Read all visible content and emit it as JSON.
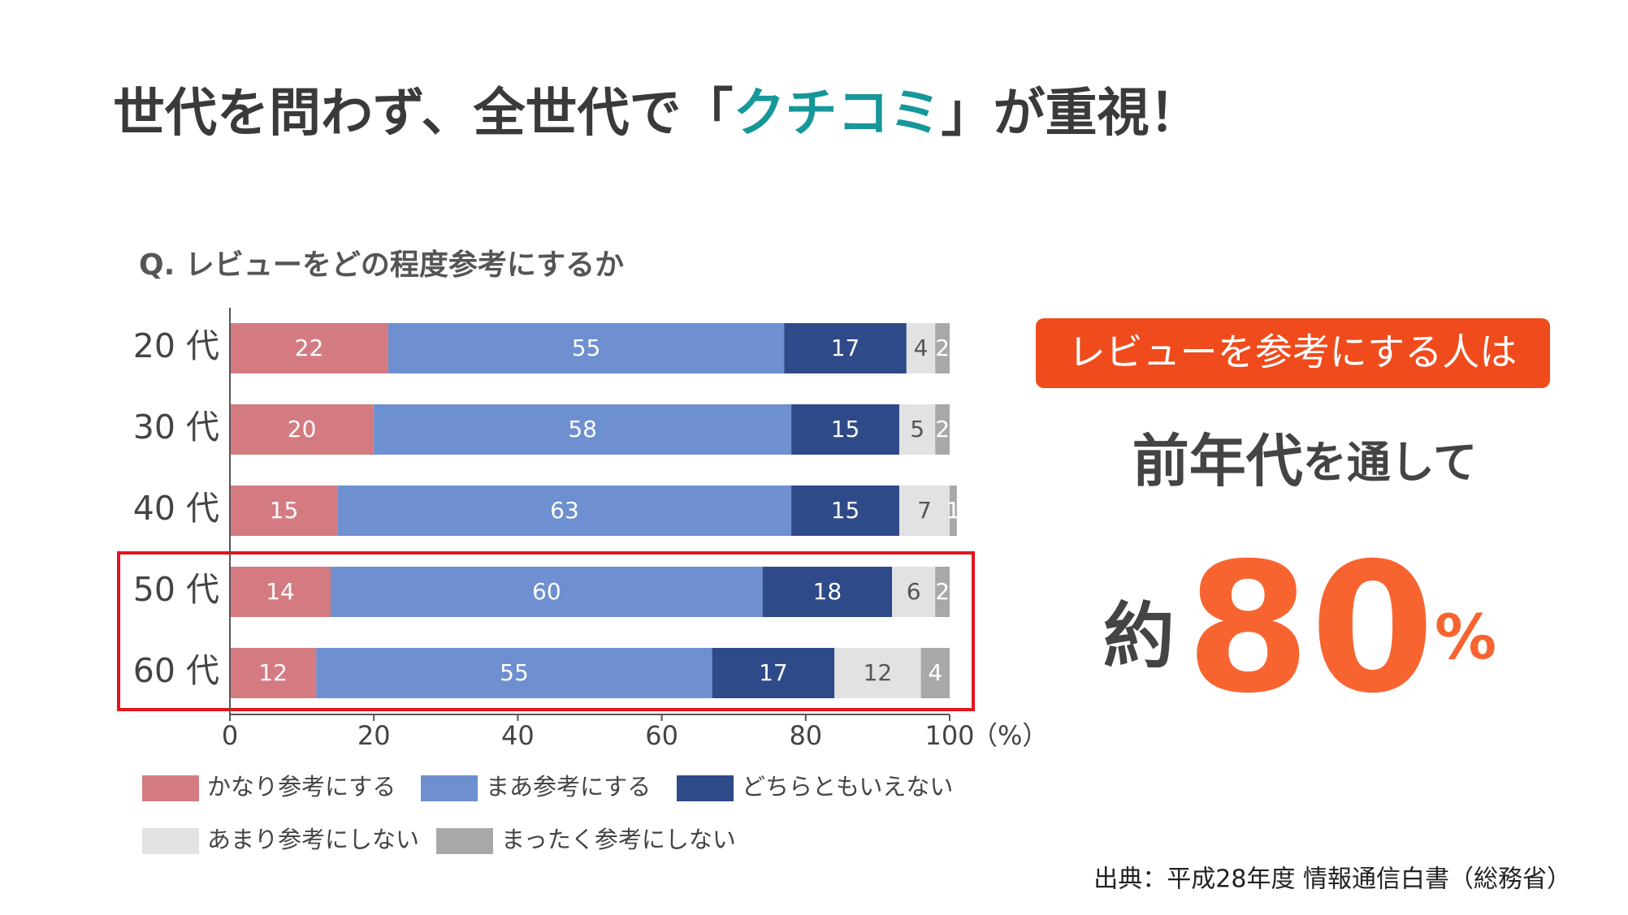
{
  "headline": {
    "before": "世代を問わず、全世代で「",
    "highlight": "クチコミ",
    "after": "」が重視！"
  },
  "chart_data": {
    "type": "stacked_barh",
    "title": "Q. レビューをどの程度参考にするか",
    "categories": [
      "20 代",
      "30 代",
      "40 代",
      "50 代",
      "60 代"
    ],
    "series": [
      {
        "name": "かなり参考にする",
        "color": "#d47b82",
        "values": [
          22,
          20,
          15,
          14,
          12
        ]
      },
      {
        "name": "まあ参考にする",
        "color": "#6e8fd0",
        "values": [
          55,
          58,
          63,
          60,
          55
        ]
      },
      {
        "name": "どちらともいえない",
        "color": "#2f4a88",
        "values": [
          17,
          15,
          15,
          18,
          17
        ]
      },
      {
        "name": "あまり参考にしない",
        "color": "#e2e2e2",
        "values": [
          4,
          5,
          7,
          6,
          12
        ]
      },
      {
        "name": "まったく参考にしない",
        "color": "#a8a8a8",
        "values": [
          2,
          2,
          1,
          2,
          4
        ]
      }
    ],
    "xlim": [
      0,
      100
    ],
    "xticks": [
      0,
      20,
      40,
      60,
      80,
      100
    ],
    "x_unit": "（%）"
  },
  "callout": {
    "badge": "レビューを参考にする人は",
    "lead_strong": "前年代",
    "lead_rest": "を通して",
    "prefix": "約",
    "value": 80,
    "unit": "%"
  },
  "source": "出典：平成28年度 情報通信白書（総務省）"
}
